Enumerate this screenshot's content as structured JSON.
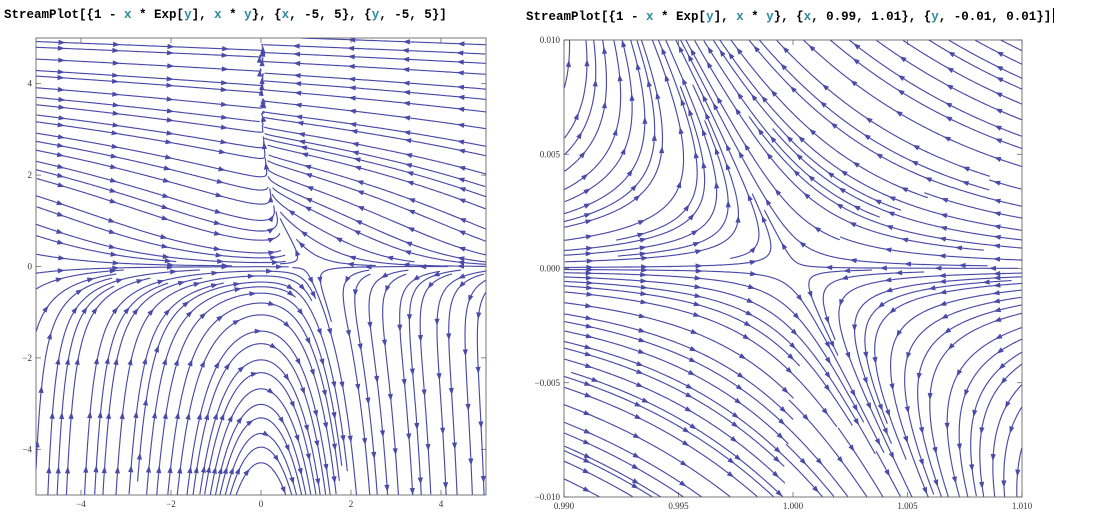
{
  "code_left": [
    {
      "t": "StreamPlot[{1 - ",
      "k": "b"
    },
    {
      "t": "x",
      "k": "v"
    },
    {
      "t": " * Exp[",
      "k": "b"
    },
    {
      "t": "y",
      "k": "v"
    },
    {
      "t": "], ",
      "k": "b"
    },
    {
      "t": "x",
      "k": "v"
    },
    {
      "t": " * ",
      "k": "b"
    },
    {
      "t": "y",
      "k": "v"
    },
    {
      "t": "}, {",
      "k": "b"
    },
    {
      "t": "x",
      "k": "v"
    },
    {
      "t": ", -5, 5}, {",
      "k": "b"
    },
    {
      "t": "y",
      "k": "v"
    },
    {
      "t": ", -5, 5}]",
      "k": "b"
    }
  ],
  "code_right": [
    {
      "t": "StreamPlot[{1 - ",
      "k": "b"
    },
    {
      "t": "x",
      "k": "v"
    },
    {
      "t": " * Exp[",
      "k": "b"
    },
    {
      "t": "y",
      "k": "v"
    },
    {
      "t": "], ",
      "k": "b"
    },
    {
      "t": "x",
      "k": "v"
    },
    {
      "t": " * ",
      "k": "b"
    },
    {
      "t": "y",
      "k": "v"
    },
    {
      "t": "}, {",
      "k": "b"
    },
    {
      "t": "x",
      "k": "v"
    },
    {
      "t": ", 0.99, 1.01}, {",
      "k": "b"
    },
    {
      "t": "y",
      "k": "v"
    },
    {
      "t": ", -0.01, 0.01}]",
      "k": "b"
    }
  ],
  "stream_color": "#4a4aa8",
  "chart_data": [
    {
      "type": "streamplot",
      "field": "{1 - x*Exp[y], x*y}",
      "xlim": [
        -5,
        5
      ],
      "ylim": [
        -5,
        5
      ],
      "xticks": [
        -4,
        -2,
        0,
        2,
        4
      ],
      "yticks": [
        -4,
        -2,
        0,
        2,
        4
      ],
      "xtick_labels": [
        "−4",
        "−2",
        "0",
        "2",
        "4"
      ],
      "ytick_labels": [
        "−4",
        "−2",
        "0",
        "2",
        "4"
      ],
      "grid": false
    },
    {
      "type": "streamplot",
      "field": "{1 - x*Exp[y], x*y}",
      "xlim": [
        0.99,
        1.01
      ],
      "ylim": [
        -0.01,
        0.01
      ],
      "xticks": [
        0.99,
        0.995,
        1.0,
        1.005,
        1.01
      ],
      "yticks": [
        -0.01,
        -0.005,
        0.0,
        0.005,
        0.01
      ],
      "xtick_labels": [
        "0.990",
        "0.995",
        "1.000",
        "1.005",
        "1.010"
      ],
      "ytick_labels": [
        "−0.010",
        "−0.005",
        "0.000",
        "0.005",
        "0.010"
      ],
      "grid": false
    }
  ]
}
